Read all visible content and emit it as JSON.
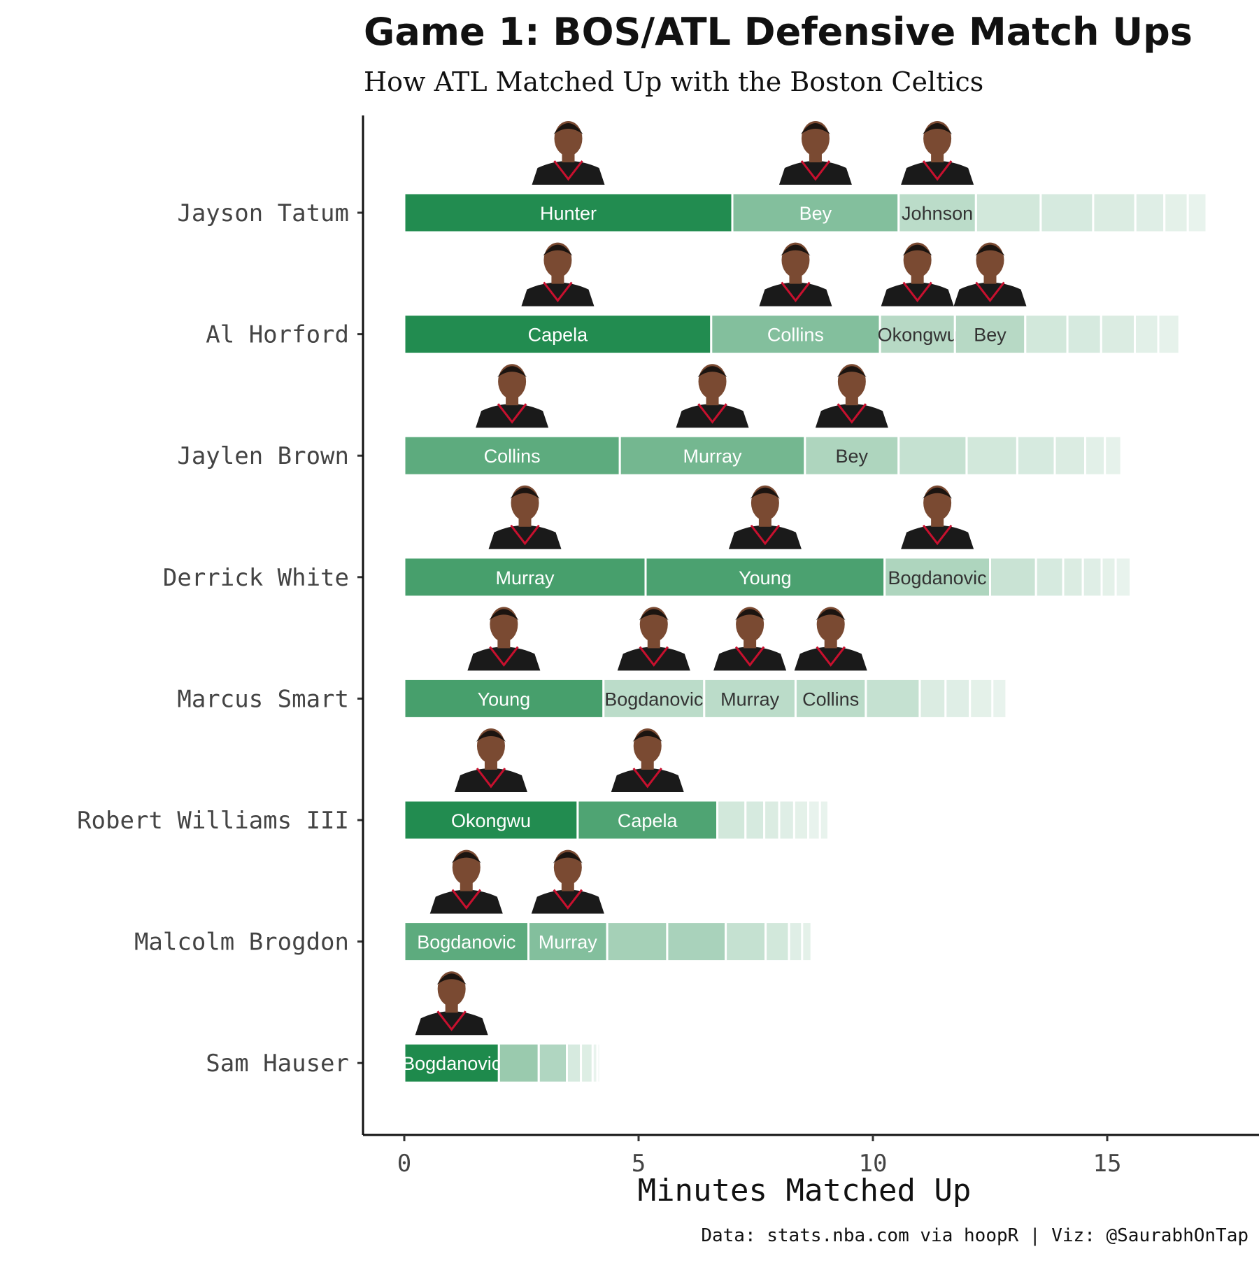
{
  "chart_data": {
    "type": "bar",
    "orientation": "horizontal",
    "stacked": true,
    "title": "Game 1: BOS/ATL Defensive Match Ups",
    "subtitle": "How ATL Matched Up with the Boston Celtics",
    "xlabel": "Minutes Matched Up",
    "caption": "Data: stats.nba.com via hoopR | Viz: @SaurabhOnTap",
    "xlim": [
      0,
      18.1
    ],
    "xticks": [
      "0",
      "5",
      "10",
      "15"
    ],
    "xtick_values": [
      0,
      5,
      10,
      15
    ],
    "grid": false,
    "legend": "none",
    "colors": {
      "bar": "#1e8a4c",
      "labelDark": "#333333",
      "labelLight": "#ffffff",
      "jersey": "#1a1a1a",
      "jerseyTrim": "#c8102e",
      "skin": "#7a4a32"
    },
    "rows": [
      {
        "player": "Jayson Tatum",
        "segments": [
          {
            "name": "Hunter",
            "value": 7.0,
            "alpha": 0.98,
            "photo": true
          },
          {
            "name": "Bey",
            "value": 3.55,
            "alpha": 0.55,
            "photo": true
          },
          {
            "name": "Johnson",
            "value": 1.65,
            "alpha": 0.3,
            "photo": true
          },
          {
            "name": "",
            "value": 1.38,
            "alpha": 0.2
          },
          {
            "name": "",
            "value": 1.12,
            "alpha": 0.18
          },
          {
            "name": "",
            "value": 0.9,
            "alpha": 0.16
          },
          {
            "name": "",
            "value": 0.62,
            "alpha": 0.14
          },
          {
            "name": "",
            "value": 0.5,
            "alpha": 0.12
          },
          {
            "name": "",
            "value": 0.4,
            "alpha": 0.1
          }
        ]
      },
      {
        "player": "Al Horford",
        "segments": [
          {
            "name": "Capela",
            "value": 6.55,
            "alpha": 0.98,
            "photo": true
          },
          {
            "name": "Collins",
            "value": 3.6,
            "alpha": 0.55,
            "photo": true
          },
          {
            "name": "Okongwu",
            "value": 1.6,
            "alpha": 0.32,
            "photo": true
          },
          {
            "name": "Bey",
            "value": 1.5,
            "alpha": 0.32,
            "photo": true
          },
          {
            "name": "",
            "value": 0.9,
            "alpha": 0.2
          },
          {
            "name": "",
            "value": 0.72,
            "alpha": 0.18
          },
          {
            "name": "",
            "value": 0.72,
            "alpha": 0.16
          },
          {
            "name": "",
            "value": 0.5,
            "alpha": 0.13
          },
          {
            "name": "",
            "value": 0.45,
            "alpha": 0.11
          }
        ]
      },
      {
        "player": "Jaylen Brown",
        "segments": [
          {
            "name": "Collins",
            "value": 4.6,
            "alpha": 0.72,
            "photo": true
          },
          {
            "name": "Murray",
            "value": 3.95,
            "alpha": 0.62,
            "photo": true
          },
          {
            "name": "Bey",
            "value": 2.0,
            "alpha": 0.36,
            "photo": true
          },
          {
            "name": "",
            "value": 1.45,
            "alpha": 0.26
          },
          {
            "name": "",
            "value": 1.08,
            "alpha": 0.2
          },
          {
            "name": "",
            "value": 0.8,
            "alpha": 0.18
          },
          {
            "name": "",
            "value": 0.65,
            "alpha": 0.16
          },
          {
            "name": "",
            "value": 0.42,
            "alpha": 0.13
          },
          {
            "name": "",
            "value": 0.35,
            "alpha": 0.11
          }
        ]
      },
      {
        "player": "Derrick White",
        "segments": [
          {
            "name": "Murray",
            "value": 5.15,
            "alpha": 0.82,
            "photo": true
          },
          {
            "name": "Young",
            "value": 5.1,
            "alpha": 0.8,
            "photo": true
          },
          {
            "name": "Bogdanovic",
            "value": 2.25,
            "alpha": 0.36,
            "photo": true
          },
          {
            "name": "",
            "value": 0.98,
            "alpha": 0.24
          },
          {
            "name": "",
            "value": 0.58,
            "alpha": 0.18
          },
          {
            "name": "",
            "value": 0.42,
            "alpha": 0.16
          },
          {
            "name": "",
            "value": 0.4,
            "alpha": 0.14
          },
          {
            "name": "",
            "value": 0.3,
            "alpha": 0.12
          },
          {
            "name": "",
            "value": 0.32,
            "alpha": 0.1
          }
        ]
      },
      {
        "player": "Marcus Smart",
        "segments": [
          {
            "name": "Young",
            "value": 4.25,
            "alpha": 0.82,
            "photo": true
          },
          {
            "name": "Bogdanovic",
            "value": 2.15,
            "alpha": 0.3,
            "photo": true
          },
          {
            "name": "Murray",
            "value": 1.95,
            "alpha": 0.3,
            "photo": true
          },
          {
            "name": "Collins",
            "value": 1.5,
            "alpha": 0.3,
            "photo": true
          },
          {
            "name": "",
            "value": 1.15,
            "alpha": 0.26
          },
          {
            "name": "",
            "value": 0.55,
            "alpha": 0.16
          },
          {
            "name": "",
            "value": 0.52,
            "alpha": 0.14
          },
          {
            "name": "",
            "value": 0.48,
            "alpha": 0.12
          },
          {
            "name": "",
            "value": 0.3,
            "alpha": 0.1
          }
        ]
      },
      {
        "player": "Robert Williams III",
        "segments": [
          {
            "name": "Okongwu",
            "value": 3.7,
            "alpha": 0.98,
            "photo": true
          },
          {
            "name": "Capela",
            "value": 2.98,
            "alpha": 0.78,
            "photo": true
          },
          {
            "name": "",
            "value": 0.6,
            "alpha": 0.2
          },
          {
            "name": "",
            "value": 0.4,
            "alpha": 0.18
          },
          {
            "name": "",
            "value": 0.32,
            "alpha": 0.16
          },
          {
            "name": "",
            "value": 0.32,
            "alpha": 0.14
          },
          {
            "name": "",
            "value": 0.3,
            "alpha": 0.12
          },
          {
            "name": "",
            "value": 0.25,
            "alpha": 0.1
          },
          {
            "name": "",
            "value": 0.18,
            "alpha": 0.1
          }
        ]
      },
      {
        "player": "Malcolm Brogdon",
        "segments": [
          {
            "name": "Bogdanovic",
            "value": 2.65,
            "alpha": 0.72,
            "photo": true
          },
          {
            "name": "Murray",
            "value": 1.68,
            "alpha": 0.55,
            "photo": true
          },
          {
            "name": "",
            "value": 1.28,
            "alpha": 0.4
          },
          {
            "name": "",
            "value": 1.25,
            "alpha": 0.38
          },
          {
            "name": "",
            "value": 0.85,
            "alpha": 0.26
          },
          {
            "name": "",
            "value": 0.5,
            "alpha": 0.2
          },
          {
            "name": "",
            "value": 0.28,
            "alpha": 0.14
          },
          {
            "name": "",
            "value": 0.2,
            "alpha": 0.12
          }
        ]
      },
      {
        "player": "Sam Hauser",
        "segments": [
          {
            "name": "Bogdanovic",
            "value": 2.02,
            "alpha": 1.0,
            "photo": true
          },
          {
            "name": "",
            "value": 0.85,
            "alpha": 0.45
          },
          {
            "name": "",
            "value": 0.6,
            "alpha": 0.35
          },
          {
            "name": "",
            "value": 0.3,
            "alpha": 0.18
          },
          {
            "name": "",
            "value": 0.25,
            "alpha": 0.15
          },
          {
            "name": "",
            "value": 0.1,
            "alpha": 0.1
          },
          {
            "name": "",
            "value": 0.06,
            "alpha": 0.08
          }
        ]
      }
    ]
  }
}
